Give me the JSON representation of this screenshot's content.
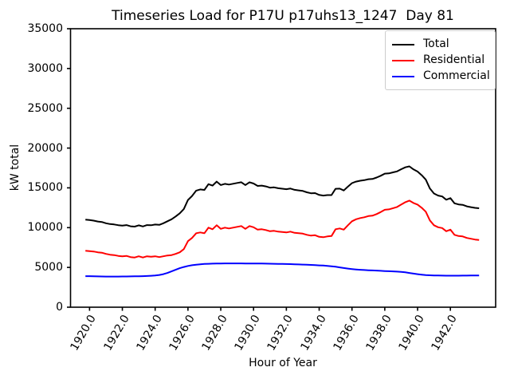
{
  "chart_data": {
    "type": "line",
    "title": "Timeseries Load for P17U p17uhs13_1247  Day 81",
    "xlabel": "Hour of Year",
    "ylabel": "kW total",
    "xlim": [
      1918.84,
      1944.76
    ],
    "ylim": [
      0,
      35000
    ],
    "grid": false,
    "legend_position": "upper right",
    "xticks": [
      1920,
      1922,
      1924,
      1926,
      1928,
      1930,
      1932,
      1934,
      1936,
      1938,
      1940,
      1942
    ],
    "xtick_labels": [
      "1920.0",
      "1922.0",
      "1924.0",
      "1926.0",
      "1928.0",
      "1930.0",
      "1932.0",
      "1934.0",
      "1936.0",
      "1938.0",
      "1940.0",
      "1942.0"
    ],
    "yticks": [
      0,
      5000,
      10000,
      15000,
      20000,
      25000,
      30000,
      35000
    ],
    "ytick_labels": [
      "0",
      "5000",
      "10000",
      "15000",
      "20000",
      "25000",
      "30000",
      "35000"
    ],
    "x_start": 1919.75,
    "x_step": 0.25,
    "series": [
      {
        "name": "Total",
        "color": "#000000",
        "values": [
          11005,
          10950,
          10880,
          10770,
          10710,
          10555,
          10450,
          10400,
          10305,
          10260,
          10315,
          10170,
          10130,
          10290,
          10150,
          10320,
          10300,
          10390,
          10350,
          10550,
          10800,
          11050,
          11400,
          11800,
          12350,
          13480,
          13980,
          14650,
          14800,
          14740,
          15460,
          15280,
          15790,
          15350,
          15505,
          15410,
          15510,
          15610,
          15705,
          15350,
          15700,
          15545,
          15240,
          15285,
          15180,
          15020,
          15060,
          14950,
          14890,
          14830,
          14915,
          14750,
          14680,
          14610,
          14440,
          14320,
          14340,
          14110,
          14030,
          14090,
          14090,
          14880,
          14900,
          14670,
          15150,
          15590,
          15790,
          15900,
          15970,
          16090,
          16120,
          16300,
          16520,
          16790,
          16820,
          16950,
          17070,
          17340,
          17580,
          17700,
          17320,
          17050,
          16590,
          16040,
          14910,
          14290,
          14030,
          13920,
          13510,
          13710,
          13060,
          12915,
          12870,
          12675,
          12580,
          12485,
          12440
        ]
      },
      {
        "name": "Residential",
        "color": "#ff0000",
        "values": [
          7100,
          7050,
          7000,
          6900,
          6850,
          6700,
          6600,
          6550,
          6450,
          6400,
          6450,
          6300,
          6250,
          6400,
          6250,
          6400,
          6350,
          6400,
          6300,
          6400,
          6500,
          6550,
          6700,
          6900,
          7300,
          8300,
          8700,
          9300,
          9400,
          9300,
          10000,
          9800,
          10300,
          9850,
          10000,
          9900,
          10000,
          10100,
          10200,
          9850,
          10200,
          10050,
          9750,
          9800,
          9700,
          9550,
          9600,
          9500,
          9450,
          9400,
          9500,
          9350,
          9300,
          9250,
          9100,
          9000,
          9050,
          8850,
          8800,
          8900,
          8950,
          9800,
          9900,
          9750,
          10300,
          10800,
          11050,
          11200,
          11300,
          11450,
          11500,
          11700,
          11950,
          12250,
          12300,
          12450,
          12600,
          12900,
          13200,
          13400,
          13100,
          12900,
          12500,
          12000,
          10900,
          10300,
          10050,
          9950,
          9550,
          9750,
          9100,
          8950,
          8900,
          8700,
          8600,
          8500,
          8450
        ]
      },
      {
        "name": "Commercial",
        "color": "#0000ff",
        "values": [
          3905,
          3900,
          3880,
          3870,
          3860,
          3855,
          3850,
          3850,
          3855,
          3860,
          3865,
          3870,
          3880,
          3890,
          3900,
          3920,
          3950,
          3990,
          4050,
          4150,
          4300,
          4500,
          4700,
          4900,
          5050,
          5180,
          5280,
          5350,
          5400,
          5440,
          5460,
          5480,
          5490,
          5500,
          5505,
          5510,
          5510,
          5510,
          5505,
          5500,
          5500,
          5495,
          5490,
          5485,
          5480,
          5470,
          5460,
          5450,
          5440,
          5430,
          5415,
          5400,
          5380,
          5360,
          5340,
          5320,
          5290,
          5260,
          5230,
          5190,
          5140,
          5080,
          5000,
          4920,
          4850,
          4790,
          4740,
          4700,
          4670,
          4640,
          4620,
          4600,
          4570,
          4540,
          4520,
          4500,
          4470,
          4440,
          4380,
          4300,
          4220,
          4150,
          4090,
          4040,
          4010,
          3990,
          3980,
          3970,
          3960,
          3960,
          3960,
          3965,
          3970,
          3975,
          3980,
          3985,
          3990
        ]
      }
    ],
    "axis_color": "#000000",
    "legend_border_color": "#cccccc"
  }
}
